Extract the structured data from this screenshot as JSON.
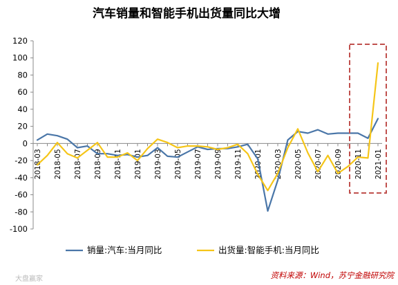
{
  "chart_data": {
    "type": "line",
    "title": "汽车销量和智能手机出货量同比大增",
    "ylim": [
      -100,
      120
    ],
    "yticks": [
      -100,
      -80,
      -60,
      -40,
      -20,
      0,
      20,
      40,
      60,
      80,
      100,
      120
    ],
    "x": [
      "2018-03",
      "2018-04",
      "2018-05",
      "2018-06",
      "2018-07",
      "2018-08",
      "2018-09",
      "2018-10",
      "2018-11",
      "2018-12",
      "2019-01",
      "2019-02",
      "2019-03",
      "2019-04",
      "2019-05",
      "2019-06",
      "2019-07",
      "2019-08",
      "2019-09",
      "2019-10",
      "2019-11",
      "2019-12",
      "2020-01",
      "2020-02",
      "2020-03",
      "2020-04",
      "2020-05",
      "2020-06",
      "2020-07",
      "2020-08",
      "2020-09",
      "2020-10",
      "2020-11",
      "2020-12",
      "2021-01"
    ],
    "xtick_labels": [
      "2018-03",
      "2018-05",
      "2018-07",
      "2018-09",
      "2018-11",
      "2019-01",
      "2019-03",
      "2019-05",
      "2019-07",
      "2019-09",
      "2019-11",
      "2020-01",
      "2020-03",
      "2020-05",
      "2020-07",
      "2020-09",
      "2020-11",
      "2021-01"
    ],
    "series": [
      {
        "name": "销量:汽车:当月同比",
        "color": "#4a76a8",
        "values": [
          4,
          11,
          9,
          5,
          -5,
          -3,
          -12,
          -12,
          -14,
          -13,
          -16,
          -14,
          -5,
          -15,
          -16,
          -10,
          -4,
          -7,
          -6,
          -6,
          -4,
          -1,
          -18,
          -79,
          -43,
          4,
          14,
          12,
          16,
          11,
          12,
          12,
          12,
          6,
          29
        ]
      },
      {
        "name": "出货量:智能手机:当月同比",
        "color": "#f5c518",
        "values": [
          -25,
          -14,
          1,
          -12,
          -17,
          -8,
          1,
          -16,
          -16,
          -11,
          -20,
          -6,
          5,
          1,
          -5,
          -3,
          -3,
          -4,
          -7,
          -5,
          -1,
          -12,
          -36,
          -55,
          -35,
          -5,
          17,
          -11,
          -33,
          -14,
          -35,
          -27,
          -16,
          -17,
          94
        ]
      }
    ],
    "grid": false,
    "legend": "bottom",
    "highlight_box": {
      "from": "2020-11",
      "to": "2021-01",
      "style": "dashed",
      "color": "#c0504d"
    }
  },
  "source_note": "资料来源：Wind，苏宁金融研究院",
  "watermark": "大盘赢家"
}
